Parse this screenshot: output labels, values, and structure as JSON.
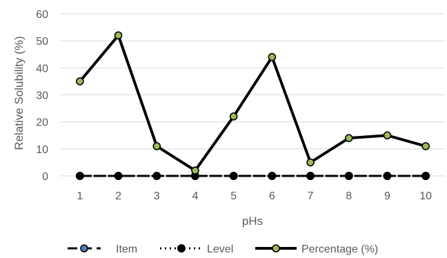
{
  "chart_data": {
    "type": "line",
    "xlabel": "pHs",
    "ylabel": "Relative Solubility (%)",
    "categories": [
      "1",
      "2",
      "3",
      "4",
      "5",
      "6",
      "7",
      "8",
      "9",
      "10"
    ],
    "ylim": [
      0,
      60
    ],
    "yticks": [
      0,
      10,
      20,
      30,
      40,
      50,
      60
    ],
    "grid": true,
    "legend_position": "bottom",
    "series": [
      {
        "name": "Item",
        "values": [
          0,
          0,
          0,
          0,
          0,
          0,
          0,
          0,
          0,
          0
        ],
        "line_style": "dashed",
        "color": "#000000",
        "marker_fill": "#4a7ebb"
      },
      {
        "name": "Level",
        "values": [
          0,
          0,
          0,
          0,
          0,
          0,
          0,
          0,
          0,
          0
        ],
        "line_style": "dotted",
        "color": "#000000",
        "marker_fill": "#000000"
      },
      {
        "name": "Percentage (%)",
        "values": [
          35,
          52,
          11,
          2,
          22,
          44,
          5,
          14,
          15,
          11
        ],
        "line_style": "solid",
        "color": "#000000",
        "marker_fill": "#9bbb59"
      }
    ]
  }
}
